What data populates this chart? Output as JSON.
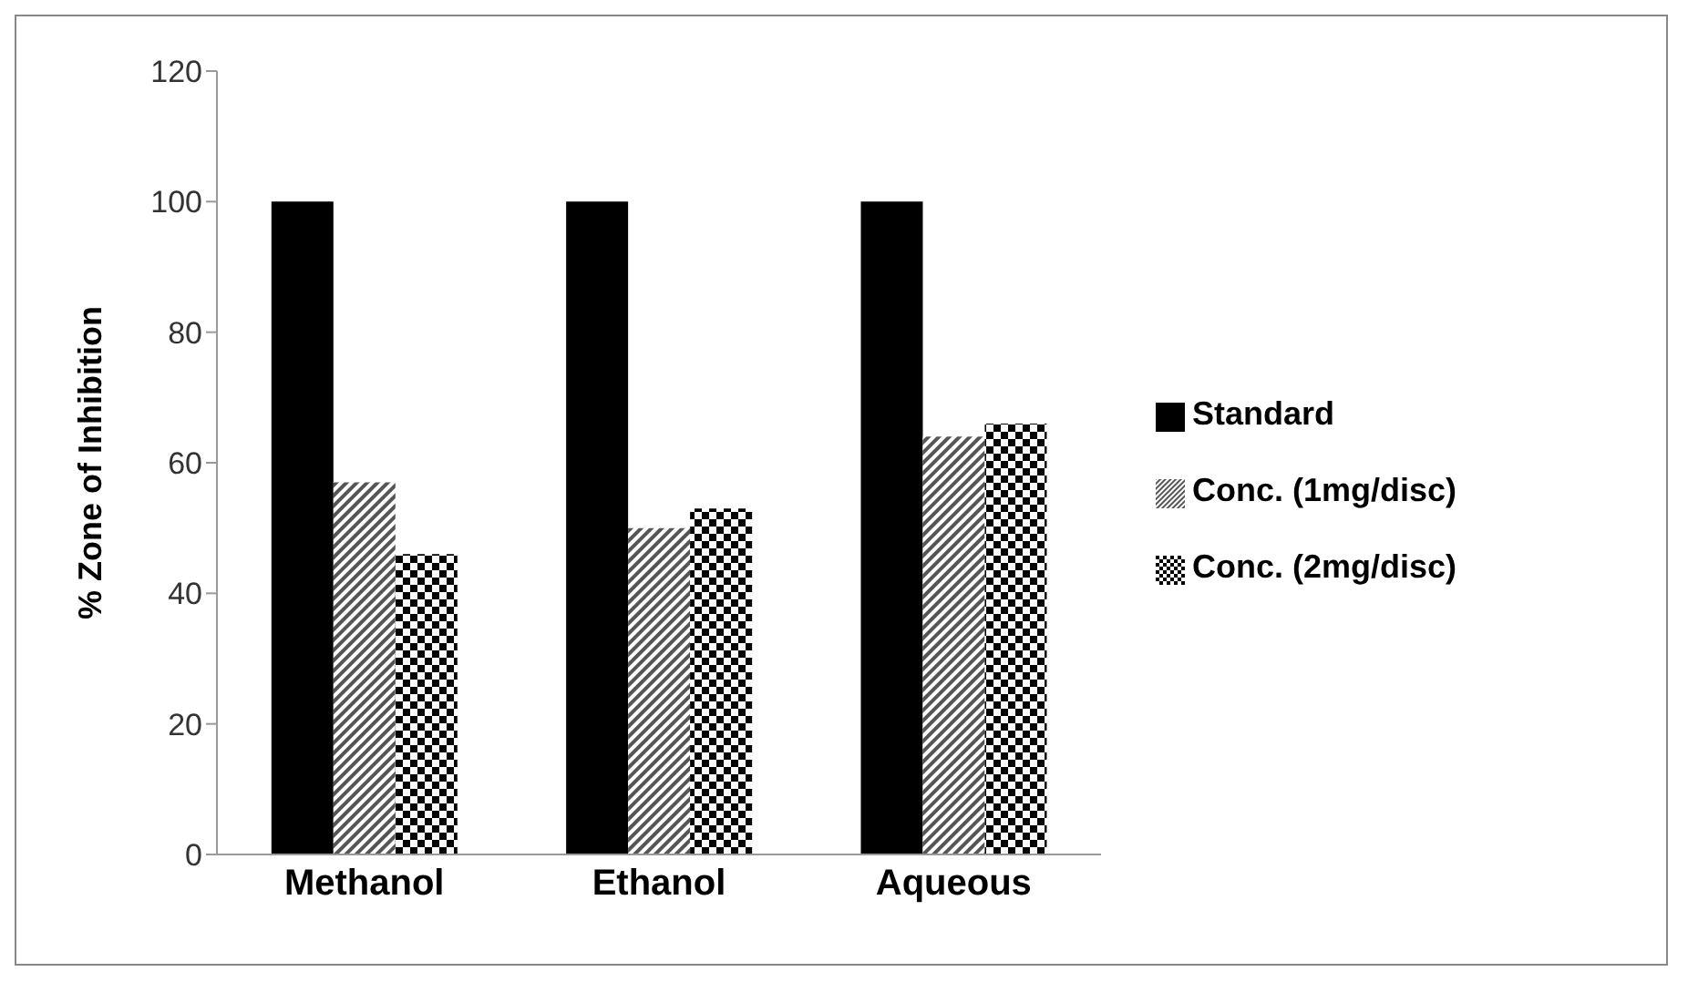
{
  "chart_data": {
    "type": "bar",
    "ylabel": "% Zone of Inhibition",
    "categories": [
      "Methanol",
      "Ethanol",
      "Aqueous"
    ],
    "series": [
      {
        "name": "Standard",
        "color": "#000000",
        "values": [
          100,
          100,
          100
        ]
      },
      {
        "name": "Conc. (1mg/disc)",
        "color": "#555555",
        "values": [
          57,
          50,
          64
        ]
      },
      {
        "name": "Conc. (2mg/disc)",
        "color": "#000000",
        "values": [
          46,
          53,
          66
        ]
      }
    ],
    "ylim": [
      0,
      120
    ],
    "yticks": [
      0,
      20,
      40,
      60,
      80,
      100,
      120
    ],
    "grid": false,
    "legend": "right"
  }
}
